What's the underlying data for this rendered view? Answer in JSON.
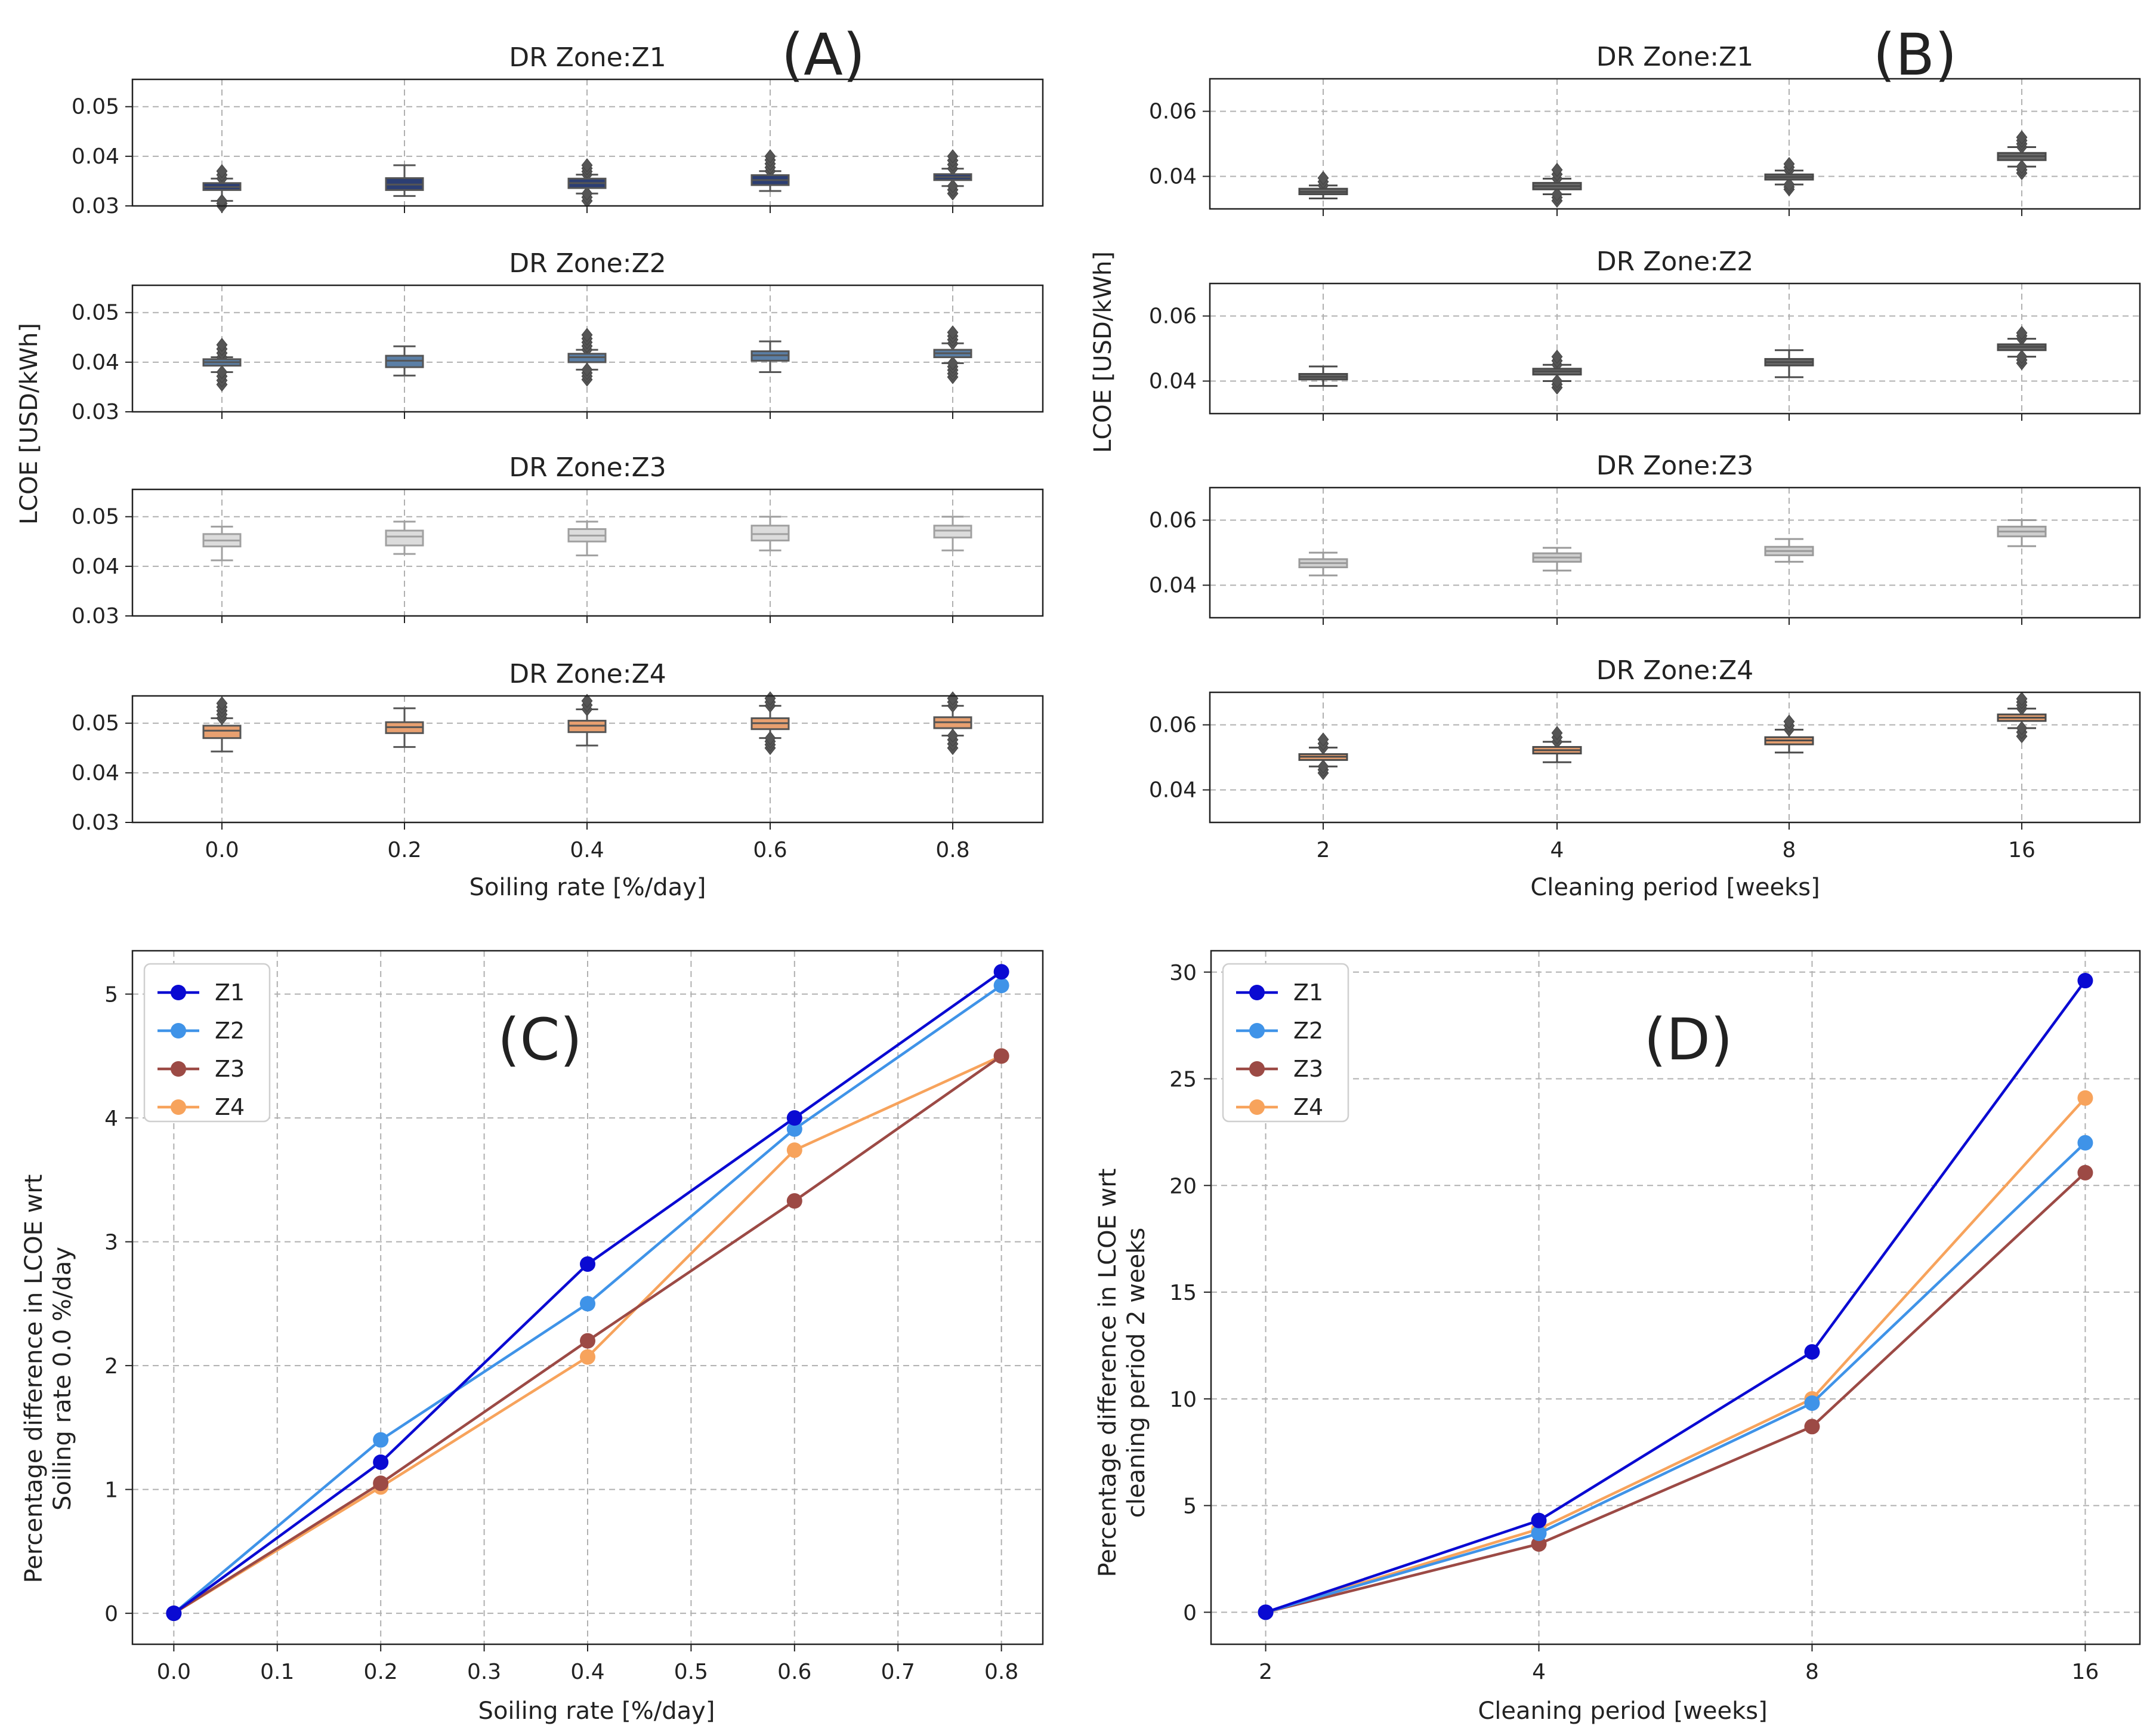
{
  "panels": {
    "A": {
      "letter": "(A)",
      "xlabel": "Soiling rate [%/day]",
      "ylabel": "LCOE [USD/kWh]",
      "xticks": [
        "0.0",
        "0.2",
        "0.4",
        "0.6",
        "0.8"
      ],
      "yticks": [
        "0.03",
        "0.04",
        "0.05"
      ]
    },
    "B": {
      "letter": "(B)",
      "xlabel": "Cleaning period [weeks]",
      "ylabel": "LCOE [USD/kWh]",
      "xticks": [
        "2",
        "4",
        "8",
        "16"
      ],
      "yticks": [
        "0.04",
        "0.06"
      ]
    },
    "C": {
      "letter": "(C)",
      "xlabel": "Soiling rate [%/day]",
      "ylabel_line1": "Percentage difference in LCOE wrt",
      "ylabel_line2": "Soiling rate 0.0 %/day"
    },
    "D": {
      "letter": "(D)",
      "xlabel": "Cleaning period [weeks]",
      "ylabel_line1": "Percentage difference in LCOE wrt",
      "ylabel_line2": "cleaning period 2 weeks"
    }
  },
  "colors": {
    "Z1": "#0a0ad2",
    "Z2": "#3f93e8",
    "Z3": "#9c4a45",
    "Z4": "#f7a35c",
    "box_Z1": "#2c3e73",
    "box_Z2": "#5b7fa6",
    "box_Z3": "#dcdcdc",
    "box_Z4": "#e8a070",
    "boxB": "#6a6a6a"
  },
  "chart_data": [
    {
      "type": "box",
      "id": "A",
      "xlabel": "Soiling rate [%/day]",
      "ylabel": "LCOE [USD/kWh]",
      "categories": [
        "0.0",
        "0.2",
        "0.4",
        "0.6",
        "0.8"
      ],
      "ylim": [
        0.03,
        0.055
      ],
      "subplots": [
        {
          "title": "DR Zone:Z1",
          "boxes": [
            {
              "q1": 0.0332,
              "med": 0.0338,
              "q3": 0.0346,
              "wlo": 0.031,
              "whi": 0.0355,
              "flo": 0.03,
              "fhi": 0.037
            },
            {
              "q1": 0.0332,
              "med": 0.0343,
              "q3": 0.0356,
              "wlo": 0.032,
              "whi": 0.0382,
              "flo": 0.032,
              "fhi": 0.0382
            },
            {
              "q1": 0.0336,
              "med": 0.0346,
              "q3": 0.0355,
              "wlo": 0.0325,
              "whi": 0.0363,
              "flo": 0.031,
              "fhi": 0.0382
            },
            {
              "q1": 0.0342,
              "med": 0.0352,
              "q3": 0.0362,
              "wlo": 0.033,
              "whi": 0.037,
              "flo": 0.033,
              "fhi": 0.04
            },
            {
              "q1": 0.0352,
              "med": 0.0358,
              "q3": 0.0364,
              "wlo": 0.034,
              "whi": 0.0375,
              "flo": 0.0325,
              "fhi": 0.04
            }
          ]
        },
        {
          "title": "DR Zone:Z2",
          "boxes": [
            {
              "q1": 0.0393,
              "med": 0.04,
              "q3": 0.0406,
              "wlo": 0.038,
              "whi": 0.041,
              "flo": 0.0355,
              "fhi": 0.0435
            },
            {
              "q1": 0.039,
              "med": 0.0403,
              "q3": 0.0413,
              "wlo": 0.0373,
              "whi": 0.0432,
              "flo": 0.0373,
              "fhi": 0.0432
            },
            {
              "q1": 0.04,
              "med": 0.041,
              "q3": 0.0417,
              "wlo": 0.0385,
              "whi": 0.0425,
              "flo": 0.0365,
              "fhi": 0.0455
            },
            {
              "q1": 0.0403,
              "med": 0.0414,
              "q3": 0.0422,
              "wlo": 0.038,
              "whi": 0.0442,
              "flo": 0.038,
              "fhi": 0.0442
            },
            {
              "q1": 0.041,
              "med": 0.0418,
              "q3": 0.0425,
              "wlo": 0.0398,
              "whi": 0.0438,
              "flo": 0.037,
              "fhi": 0.046
            }
          ]
        },
        {
          "title": "DR Zone:Z3",
          "boxes": [
            {
              "q1": 0.044,
              "med": 0.0452,
              "q3": 0.0465,
              "wlo": 0.0412,
              "whi": 0.048,
              "flo": 0.0412,
              "fhi": 0.048
            },
            {
              "q1": 0.0442,
              "med": 0.046,
              "q3": 0.0472,
              "wlo": 0.0425,
              "whi": 0.049,
              "flo": 0.0425,
              "fhi": 0.049
            },
            {
              "q1": 0.045,
              "med": 0.0462,
              "q3": 0.0475,
              "wlo": 0.0422,
              "whi": 0.049,
              "flo": 0.0422,
              "fhi": 0.049
            },
            {
              "q1": 0.0452,
              "med": 0.0465,
              "q3": 0.0482,
              "wlo": 0.0432,
              "whi": 0.05,
              "flo": 0.0432,
              "fhi": 0.05
            },
            {
              "q1": 0.0458,
              "med": 0.0472,
              "q3": 0.0482,
              "wlo": 0.0432,
              "whi": 0.05,
              "flo": 0.0432,
              "fhi": 0.05
            }
          ]
        },
        {
          "title": "DR Zone:Z4",
          "boxes": [
            {
              "q1": 0.047,
              "med": 0.0485,
              "q3": 0.0495,
              "wlo": 0.0443,
              "whi": 0.051,
              "flo": 0.0443,
              "fhi": 0.054
            },
            {
              "q1": 0.048,
              "med": 0.0492,
              "q3": 0.0502,
              "wlo": 0.0452,
              "whi": 0.053,
              "flo": 0.0452,
              "fhi": 0.053
            },
            {
              "q1": 0.0482,
              "med": 0.0495,
              "q3": 0.0505,
              "wlo": 0.0455,
              "whi": 0.0528,
              "flo": 0.0455,
              "fhi": 0.0545
            },
            {
              "q1": 0.0488,
              "med": 0.05,
              "q3": 0.051,
              "wlo": 0.047,
              "whi": 0.0535,
              "flo": 0.045,
              "fhi": 0.055
            },
            {
              "q1": 0.049,
              "med": 0.0502,
              "q3": 0.0512,
              "wlo": 0.0475,
              "whi": 0.0535,
              "flo": 0.045,
              "fhi": 0.055
            }
          ]
        }
      ]
    },
    {
      "type": "box",
      "id": "B",
      "xlabel": "Cleaning period [weeks]",
      "ylabel": "LCOE [USD/kWh]",
      "categories": [
        "2",
        "4",
        "8",
        "16"
      ],
      "ylim": [
        0.03,
        0.07
      ],
      "subplots": [
        {
          "title": "DR Zone:Z1",
          "boxes": [
            {
              "q1": 0.0345,
              "med": 0.0352,
              "q3": 0.0362,
              "wlo": 0.0332,
              "whi": 0.0372,
              "flo": 0.0332,
              "fhi": 0.0395
            },
            {
              "q1": 0.036,
              "med": 0.037,
              "q3": 0.038,
              "wlo": 0.0345,
              "whi": 0.0393,
              "flo": 0.0325,
              "fhi": 0.042
            },
            {
              "q1": 0.039,
              "med": 0.0398,
              "q3": 0.0406,
              "wlo": 0.0375,
              "whi": 0.0418,
              "flo": 0.036,
              "fhi": 0.0438
            },
            {
              "q1": 0.045,
              "med": 0.0462,
              "q3": 0.0472,
              "wlo": 0.043,
              "whi": 0.049,
              "flo": 0.041,
              "fhi": 0.052
            }
          ]
        },
        {
          "title": "DR Zone:Z2",
          "boxes": [
            {
              "q1": 0.0405,
              "med": 0.0413,
              "q3": 0.0422,
              "wlo": 0.0385,
              "whi": 0.0445,
              "flo": 0.0385,
              "fhi": 0.0445
            },
            {
              "q1": 0.042,
              "med": 0.043,
              "q3": 0.0438,
              "wlo": 0.04,
              "whi": 0.045,
              "flo": 0.038,
              "fhi": 0.0475
            },
            {
              "q1": 0.0448,
              "med": 0.0458,
              "q3": 0.0468,
              "wlo": 0.0412,
              "whi": 0.0495,
              "flo": 0.0412,
              "fhi": 0.0495
            },
            {
              "q1": 0.0495,
              "med": 0.0505,
              "q3": 0.0513,
              "wlo": 0.0475,
              "whi": 0.053,
              "flo": 0.0455,
              "fhi": 0.0548
            }
          ]
        },
        {
          "title": "DR Zone:Z3",
          "boxes": [
            {
              "q1": 0.0455,
              "med": 0.0468,
              "q3": 0.048,
              "wlo": 0.043,
              "whi": 0.05,
              "flo": 0.043,
              "fhi": 0.05
            },
            {
              "q1": 0.0472,
              "med": 0.0485,
              "q3": 0.0498,
              "wlo": 0.0445,
              "whi": 0.0515,
              "flo": 0.0445,
              "fhi": 0.0515
            },
            {
              "q1": 0.0492,
              "med": 0.0505,
              "q3": 0.0518,
              "wlo": 0.0472,
              "whi": 0.0542,
              "flo": 0.0472,
              "fhi": 0.0542
            },
            {
              "q1": 0.055,
              "med": 0.0565,
              "q3": 0.058,
              "wlo": 0.052,
              "whi": 0.06,
              "flo": 0.052,
              "fhi": 0.06
            }
          ]
        },
        {
          "title": "DR Zone:Z4",
          "boxes": [
            {
              "q1": 0.0492,
              "med": 0.0502,
              "q3": 0.051,
              "wlo": 0.0472,
              "whi": 0.053,
              "flo": 0.0452,
              "fhi": 0.0555
            },
            {
              "q1": 0.0512,
              "med": 0.0522,
              "q3": 0.0532,
              "wlo": 0.0485,
              "whi": 0.0548,
              "flo": 0.0485,
              "fhi": 0.0575
            },
            {
              "q1": 0.054,
              "med": 0.0552,
              "q3": 0.0562,
              "wlo": 0.0515,
              "whi": 0.0585,
              "flo": 0.0515,
              "fhi": 0.061
            },
            {
              "q1": 0.0612,
              "med": 0.0622,
              "q3": 0.0632,
              "wlo": 0.059,
              "whi": 0.065,
              "flo": 0.0565,
              "fhi": 0.068
            }
          ]
        }
      ]
    },
    {
      "type": "line",
      "id": "C",
      "title": "",
      "xlabel": "Soiling rate [%/day]",
      "ylabel": "Percentage difference in LCOE wrt Soiling rate 0.0 %/day",
      "xlim": [
        -0.04,
        0.84
      ],
      "ylim": [
        -0.25,
        5.35
      ],
      "xticks": [
        0.0,
        0.1,
        0.2,
        0.3,
        0.4,
        0.5,
        0.6,
        0.7,
        0.8
      ],
      "xtick_labels": [
        "0.0",
        "0.1",
        "0.2",
        "0.3",
        "0.4",
        "0.5",
        "0.6",
        "0.7",
        "0.8"
      ],
      "yticks": [
        0,
        1,
        2,
        3,
        4,
        5
      ],
      "ytick_labels": [
        "0",
        "1",
        "2",
        "3",
        "4",
        "5"
      ],
      "x": [
        0.0,
        0.2,
        0.4,
        0.6,
        0.8
      ],
      "series": [
        {
          "name": "Z1",
          "values": [
            0,
            1.22,
            2.82,
            4.0,
            5.18
          ]
        },
        {
          "name": "Z2",
          "values": [
            0,
            1.4,
            2.5,
            3.91,
            5.07
          ]
        },
        {
          "name": "Z3",
          "values": [
            0,
            1.05,
            2.2,
            3.33,
            4.5
          ]
        },
        {
          "name": "Z4",
          "values": [
            0,
            1.02,
            2.07,
            3.74,
            4.5
          ]
        }
      ],
      "legend": "top-left",
      "grid": true
    },
    {
      "type": "line",
      "id": "D",
      "title": "",
      "xlabel": "Cleaning period [weeks]",
      "ylabel": "Percentage difference in LCOE wrt cleaning period 2 weeks",
      "xlim": [
        -0.2,
        3.2
      ],
      "ylim": [
        -1.5,
        31.0
      ],
      "xticks": [
        0,
        1,
        2,
        3
      ],
      "xtick_labels": [
        "2",
        "4",
        "8",
        "16"
      ],
      "yticks": [
        0,
        5,
        10,
        15,
        20,
        25,
        30
      ],
      "ytick_labels": [
        "0",
        "5",
        "10",
        "15",
        "20",
        "25",
        "30"
      ],
      "x": [
        0,
        1,
        2,
        3
      ],
      "series": [
        {
          "name": "Z1",
          "values": [
            0,
            4.3,
            12.2,
            29.6
          ]
        },
        {
          "name": "Z2",
          "values": [
            0,
            3.7,
            9.8,
            22.0
          ]
        },
        {
          "name": "Z3",
          "values": [
            0,
            3.2,
            8.7,
            20.6
          ]
        },
        {
          "name": "Z4",
          "values": [
            0,
            3.9,
            10.0,
            24.1
          ]
        }
      ],
      "legend": "top-left",
      "grid": true
    }
  ]
}
